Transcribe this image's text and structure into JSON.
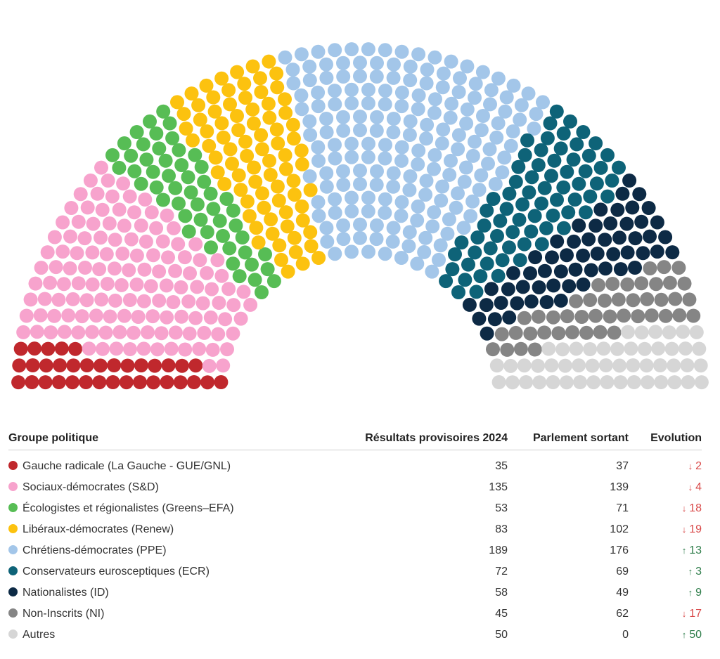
{
  "chart_data": {
    "type": "parliament",
    "seat_groups": [
      {
        "name": "Gauche radicale (La Gauche - GUE/GNL)",
        "color": "#c0282d",
        "results_2024": "35",
        "outgoing": "37",
        "evolution": {
          "direction": "down",
          "value": "2"
        }
      },
      {
        "name": "Sociaux-démocrates (S&D)",
        "color": "#f7a3cd",
        "results_2024": "135",
        "outgoing": "139",
        "evolution": {
          "direction": "down",
          "value": "4"
        }
      },
      {
        "name": "Écologistes et régionalistes (Greens–EFA)",
        "color": "#57bd55",
        "results_2024": "53",
        "outgoing": "71",
        "evolution": {
          "direction": "down",
          "value": "18"
        }
      },
      {
        "name": "Libéraux-démocrates (Renew)",
        "color": "#fcc20f",
        "results_2024": "83",
        "outgoing": "102",
        "evolution": {
          "direction": "down",
          "value": "19"
        }
      },
      {
        "name": "Chrétiens-démocrates (PPE)",
        "color": "#a3c6e9",
        "results_2024": "189",
        "outgoing": "176",
        "evolution": {
          "direction": "up",
          "value": "13"
        }
      },
      {
        "name": "Conservateurs eurosceptiques (ECR)",
        "color": "#0e6378",
        "results_2024": "72",
        "outgoing": "69",
        "evolution": {
          "direction": "up",
          "value": "3"
        }
      },
      {
        "name": "Nationalistes (ID)",
        "color": "#0d2a45",
        "results_2024": "58",
        "outgoing": "49",
        "evolution": {
          "direction": "up",
          "value": "9"
        }
      },
      {
        "name": "Non-Inscrits (NI)",
        "color": "#858585",
        "results_2024": "45",
        "outgoing": "62",
        "evolution": {
          "direction": "down",
          "value": "17"
        }
      },
      {
        "name": "Autres",
        "color": "#d6d6d6",
        "results_2024": "50",
        "outgoing": "0",
        "evolution": {
          "direction": "up",
          "value": "50"
        }
      }
    ]
  },
  "table": {
    "headers": {
      "group": "Groupe politique",
      "results": "Résultats provisoires 2024",
      "outgoing": "Parlement sortant",
      "evolution": "Evolution"
    }
  },
  "icons": {
    "up": "arrow-up-icon",
    "down": "arrow-down-icon"
  }
}
